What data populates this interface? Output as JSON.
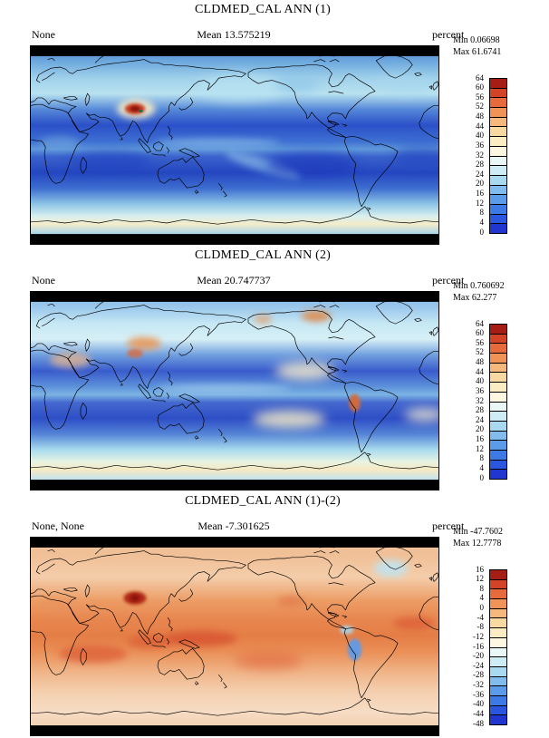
{
  "colorbar_colors_top_to_bottom": [
    "#a51d15",
    "#d24328",
    "#e66a3c",
    "#f09356",
    "#f6b87c",
    "#fad8a2",
    "#fcecc4",
    "#fdf7e1",
    "#e9f7f6",
    "#cdecf5",
    "#a9d9f1",
    "#82bcee",
    "#5c9bea",
    "#3e7ae6",
    "#2b57e0",
    "#2135cf"
  ],
  "panels": [
    {
      "title": "CLDMED_CAL ANN (1)",
      "case_label": "None",
      "mean_label": "Mean 13.575219",
      "units_label": "percent",
      "min_label": "Min 0.06698",
      "max_label": "Max 61.6741",
      "colorbar_ticks": [
        "64",
        "60",
        "56",
        "52",
        "48",
        "44",
        "40",
        "36",
        "32",
        "28",
        "24",
        "20",
        "16",
        "12",
        "8",
        "4",
        "0"
      ]
    },
    {
      "title": "CLDMED_CAL ANN (2)",
      "case_label": "None",
      "mean_label": "Mean 20.747737",
      "units_label": "percent",
      "min_label": "Min 0.760692",
      "max_label": "Max 62.277",
      "colorbar_ticks": [
        "64",
        "60",
        "56",
        "52",
        "48",
        "44",
        "40",
        "36",
        "32",
        "28",
        "24",
        "20",
        "16",
        "12",
        "8",
        "4",
        "0"
      ]
    },
    {
      "title": "CLDMED_CAL ANN (1)-(2)",
      "case_label": "None, None",
      "mean_label": "Mean -7.301625",
      "units_label": "percent",
      "min_label": "Min -47.7602",
      "max_label": "Max 12.7778",
      "colorbar_ticks": [
        "16",
        "12",
        "8",
        "4",
        "0",
        "-4",
        "-8",
        "-12",
        "-16",
        "-20",
        "-24",
        "-28",
        "-32",
        "-36",
        "-40",
        "-44",
        "-48"
      ]
    }
  ],
  "chart_data": [
    {
      "type": "heatmap",
      "title": "CLDMED_CAL ANN (1)",
      "case": "None",
      "units": "percent",
      "statistics": {
        "mean": 13.575219,
        "min": 0.06698,
        "max": 61.6741
      },
      "colorbar_levels": [
        0,
        4,
        8,
        12,
        16,
        20,
        24,
        28,
        32,
        36,
        40,
        44,
        48,
        52,
        56,
        60,
        64
      ],
      "palette_top_to_bottom": [
        "#a51d15",
        "#d24328",
        "#e66a3c",
        "#f09356",
        "#f6b87c",
        "#fad8a2",
        "#fcecc4",
        "#fdf7e1",
        "#e9f7f6",
        "#cdecf5",
        "#a9d9f1",
        "#82bcee",
        "#5c9bea",
        "#3e7ae6",
        "#2b57e0",
        "#2135cf"
      ],
      "projection": "global cylindrical-equidistant map, longitude 0-360E left to right, 90N top to 90S bottom, black bars over poles",
      "field_description": "Annual-mean mid-level cloud amount, case 1: mostly 4-16% (dark blue) over subtropical oceans, 20-32% (light blue/cyan) at mid and high latitudes and along the ITCZ, a 30-40% pale band over the Southern Ocean near 60S, and a 50-62% maximum (red spot) over the Tibetan Plateau"
    },
    {
      "type": "heatmap",
      "title": "CLDMED_CAL ANN (2)",
      "case": "None",
      "units": "percent",
      "statistics": {
        "mean": 20.747737,
        "min": 0.760692,
        "max": 62.277
      },
      "colorbar_levels": [
        0,
        4,
        8,
        12,
        16,
        20,
        24,
        28,
        32,
        36,
        40,
        44,
        48,
        52,
        56,
        60,
        64
      ],
      "palette_top_to_bottom": [
        "#a51d15",
        "#d24328",
        "#e66a3c",
        "#f09356",
        "#f6b87c",
        "#fad8a2",
        "#fcecc4",
        "#fdf7e1",
        "#e9f7f6",
        "#cdecf5",
        "#a9d9f1",
        "#82bcee",
        "#5c9bea",
        "#3e7ae6",
        "#2b57e0",
        "#2135cf"
      ],
      "projection": "global cylindrical-equidistant map, longitude 0-360E left to right, 90N top to 90S bottom, black bars over poles",
      "field_description": "Annual-mean mid-level cloud amount, case 2: generally higher than case 1, 8-20% over subtropical oceans, 24-40% at mid/high latitudes, cream 36-44% patches in the eastern Pacific, Southern Ocean and near Peru, orange 44-56% spots over central Asia, northern Canada and the Peruvian coast"
    },
    {
      "type": "heatmap",
      "title": "CLDMED_CAL ANN (1)-(2)",
      "case": "None, None",
      "units": "percent",
      "statistics": {
        "mean": -7.301625,
        "min": -47.7602,
        "max": 12.7778
      },
      "colorbar_levels": [
        -48,
        -44,
        -40,
        -36,
        -32,
        -28,
        -24,
        -20,
        -16,
        -12,
        -8,
        -4,
        0,
        4,
        8,
        12,
        16
      ],
      "palette_top_to_bottom": [
        "#a51d15",
        "#d24328",
        "#e66a3c",
        "#f09356",
        "#f6b87c",
        "#fad8a2",
        "#fcecc4",
        "#fdf7e1",
        "#e9f7f6",
        "#cdecf5",
        "#a9d9f1",
        "#82bcee",
        "#5c9bea",
        "#3e7ae6",
        "#2b57e0",
        "#2135cf"
      ],
      "projection": "global cylindrical-equidistant map, longitude 0-360E left to right, 90N top to 90S bottom, black bars over poles",
      "field_description": "Difference case 1 minus case 2: predominantly negative (-4 to -16%, salmon/orange) nearly everywhere, stronger -16 to -28% (red) bands in the tropics and over the Tibetan Plateau, small positive 4-12% (blue) spots over the Andes/Peru, Colombia and the high North Atlantic"
    }
  ]
}
